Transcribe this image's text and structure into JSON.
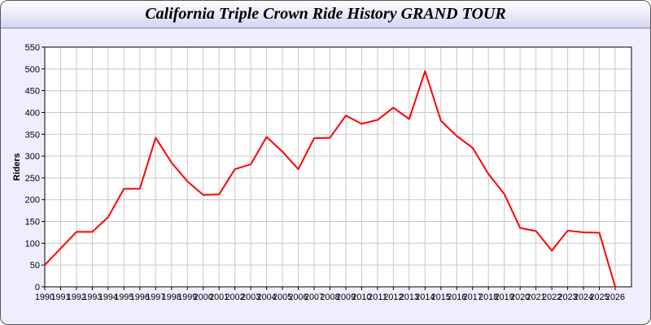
{
  "chart_data": {
    "type": "line",
    "title": "California Triple Crown Ride History GRAND TOUR",
    "xlabel": "",
    "ylabel": "Riders",
    "ylim": [
      0,
      550
    ],
    "yticks": [
      0,
      50,
      100,
      150,
      200,
      250,
      300,
      350,
      400,
      450,
      500,
      550
    ],
    "grid": true,
    "line_color": "#ff0000",
    "x": [
      1990,
      1991,
      1992,
      1993,
      1994,
      1995,
      1996,
      1997,
      1998,
      1999,
      2000,
      2001,
      2002,
      2003,
      2004,
      2005,
      2006,
      2007,
      2008,
      2009,
      2010,
      2011,
      2012,
      2013,
      2014,
      2015,
      2016,
      2017,
      2018,
      2019,
      2020,
      2021,
      2022,
      2023,
      2024,
      2025,
      2026
    ],
    "values": [
      50,
      88,
      126,
      126,
      160,
      225,
      225,
      342,
      285,
      242,
      211,
      212,
      270,
      281,
      344,
      310,
      270,
      341,
      342,
      393,
      374,
      383,
      411,
      385,
      495,
      381,
      346,
      319,
      259,
      213,
      135,
      128,
      83,
      129,
      125,
      124,
      0
    ]
  }
}
